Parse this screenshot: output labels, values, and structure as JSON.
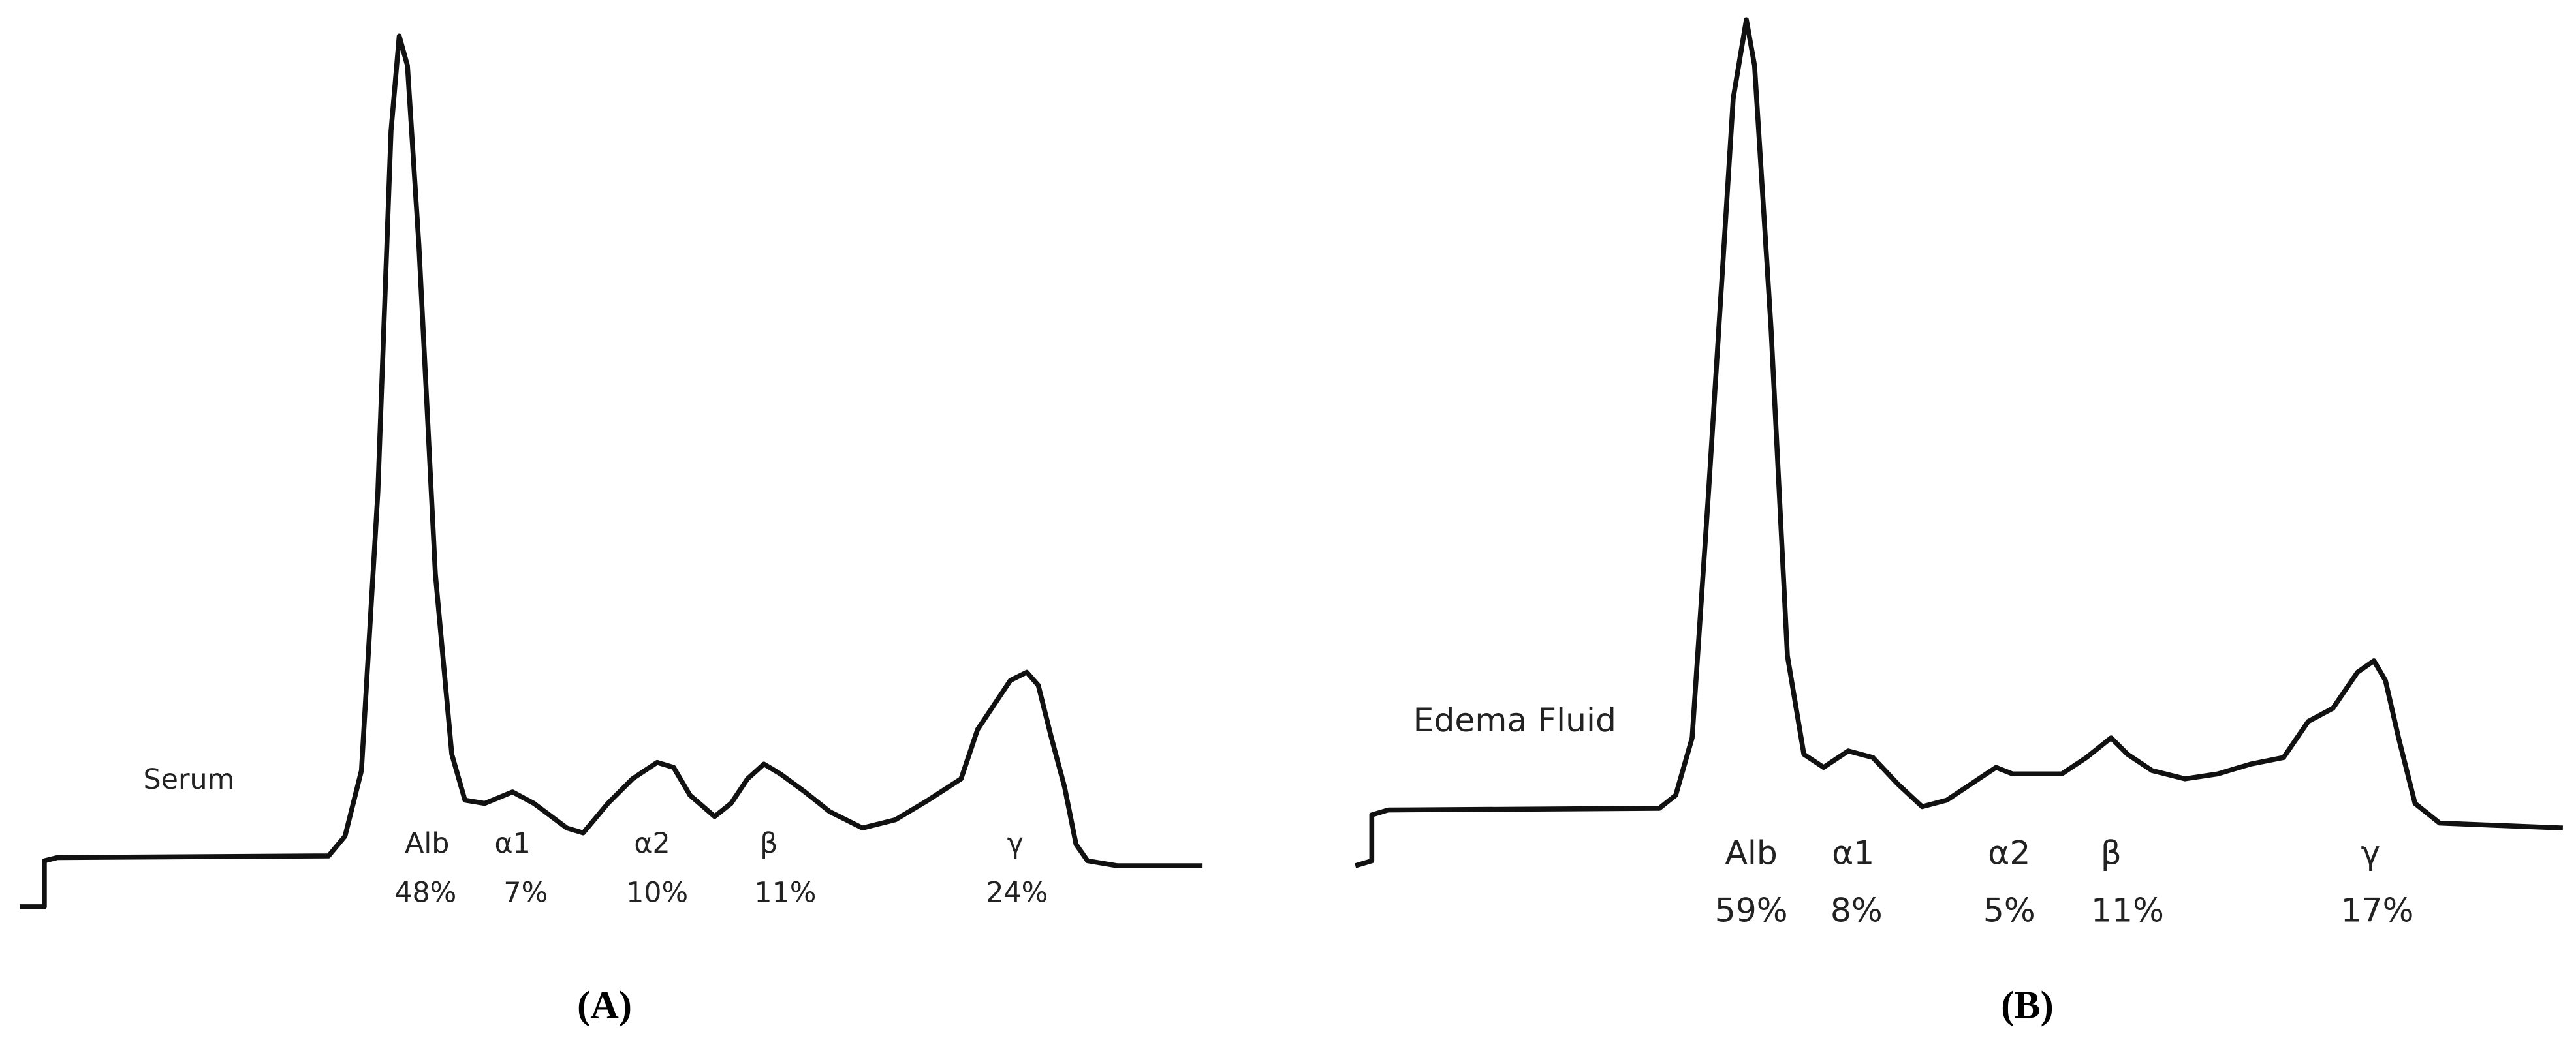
{
  "panels": [
    {
      "caption": "(A)",
      "sample": "Serum",
      "fractions": [
        {
          "name": "Alb",
          "percent": "48%"
        },
        {
          "name": "α1",
          "percent": "7%"
        },
        {
          "name": "α2",
          "percent": "10%"
        },
        {
          "name": "β",
          "percent": "11%"
        },
        {
          "name": "γ",
          "percent": "24%"
        }
      ]
    },
    {
      "caption": "(B)",
      "sample": "Edema Fluid",
      "fractions": [
        {
          "name": "Alb",
          "percent": "59%"
        },
        {
          "name": "α1",
          "percent": "8%"
        },
        {
          "name": "α2",
          "percent": "5%"
        },
        {
          "name": "β",
          "percent": "11%"
        },
        {
          "name": "γ",
          "percent": "17%"
        }
      ]
    }
  ]
}
